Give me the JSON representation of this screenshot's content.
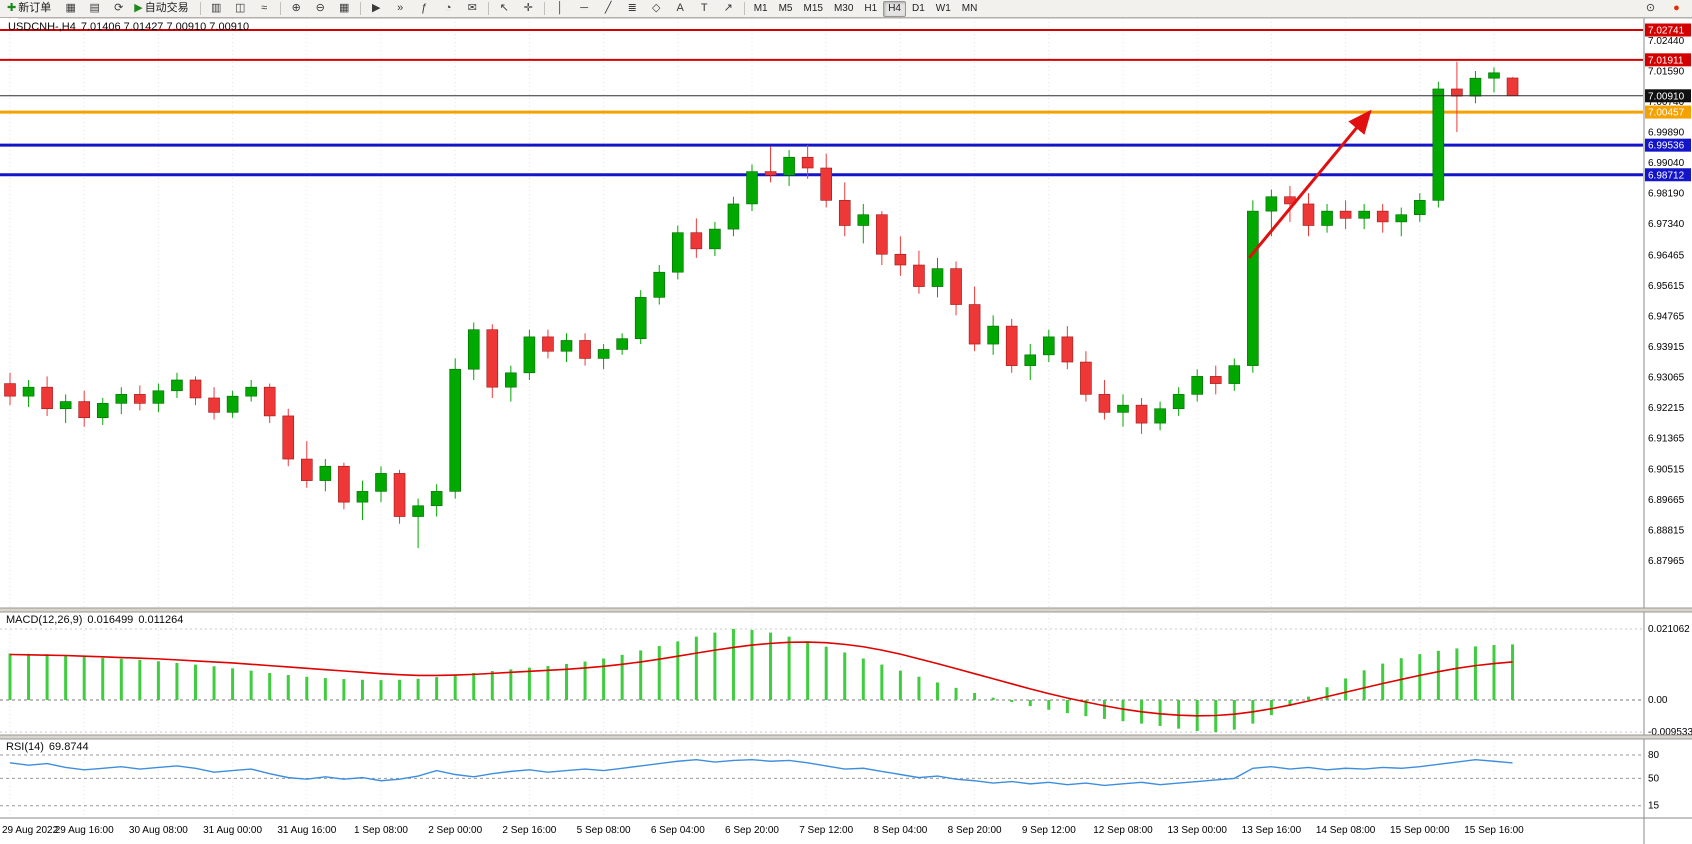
{
  "toolbar": {
    "new_order_label": "新订单",
    "autotrading_label": "自动交易",
    "left_items": [
      {
        "name": "new-order",
        "glyph": "✚",
        "glyph_color": "#1d8a1d",
        "label": "新订单"
      },
      {
        "name": "charts-window",
        "glyph": "▦"
      },
      {
        "name": "profiles",
        "glyph": "▤"
      },
      {
        "name": "refresh",
        "glyph": "⟳"
      },
      {
        "name": "autotrading",
        "glyph": "▶",
        "glyph_color": "#1d8a1d",
        "label": "自动交易"
      },
      {
        "sep": true
      },
      {
        "name": "bar-chart",
        "glyph": "▥"
      },
      {
        "name": "candlestick-chart",
        "glyph": "◫"
      },
      {
        "name": "line-chart",
        "glyph": "≈"
      },
      {
        "sep": true
      },
      {
        "name": "zoom-in",
        "glyph": "⊕"
      },
      {
        "name": "zoom-out",
        "glyph": "⊖"
      },
      {
        "name": "tile-windows",
        "glyph": "▦"
      },
      {
        "sep": true
      },
      {
        "name": "auto-scroll",
        "glyph": "▶"
      },
      {
        "name": "chart-shift",
        "glyph": "»"
      },
      {
        "name": "indicators",
        "glyph": "ƒ"
      },
      {
        "name": "periods",
        "glyph": "◔"
      },
      {
        "name": "alerts",
        "glyph": "✉"
      },
      {
        "sep": true
      },
      {
        "name": "cursor",
        "glyph": "↖"
      },
      {
        "name": "crosshair",
        "glyph": "✛"
      },
      {
        "sep": true
      },
      {
        "name": "vertical-line-tool",
        "glyph": "│"
      },
      {
        "name": "horizontal-line-tool",
        "glyph": "─"
      },
      {
        "name": "trendline-tool",
        "glyph": "╱"
      },
      {
        "name": "fibonacci-tool",
        "glyph": "≣"
      },
      {
        "name": "shapes-tool",
        "glyph": "◇"
      },
      {
        "name": "text-tool",
        "glyph": "A"
      },
      {
        "name": "label-tool",
        "glyph": "T"
      },
      {
        "name": "arrows-tool",
        "glyph": "↗"
      },
      {
        "sep": true
      }
    ],
    "timeframes": [
      "M1",
      "M5",
      "M15",
      "M30",
      "H1",
      "H4",
      "D1",
      "W1",
      "MN"
    ],
    "active_timeframe": "H4",
    "right_items": [
      {
        "name": "search",
        "glyph": "⊙",
        "glyph_color": "#3a3a3a"
      },
      {
        "name": "notification",
        "glyph": "●",
        "glyph_color": "#e03000"
      }
    ]
  },
  "colors": {
    "up": "#00A800",
    "up_edge": "#006b00",
    "down": "#EE3838",
    "down_edge": "#9e1515",
    "macd_hist": "#3FCC3F",
    "macd_signal": "#E00000",
    "rsi": "#3E8EDE",
    "grid": "#E4E4E4",
    "arrow": "#E01010",
    "axis_border": "#8A8A8A",
    "current_price_line": "#2F2F2F",
    "current_price_badge": "#111111"
  },
  "chart_data": {
    "type": "candlestick",
    "symbol": "USDCNH",
    "timeframe": "H4",
    "symbol_header": "USDCNH-,H4",
    "ohlc_text": "7.01406 7.01427 7.00910 7.00910",
    "ohlc": {
      "open": "7.01406",
      "high": "7.01427",
      "low": "7.00910",
      "close": "7.00910"
    },
    "current_price": 7.0091,
    "ylim": [
      6.87965,
      7.02741
    ],
    "price_axis_labels": [
      7.0244,
      7.0159,
      7.0074,
      6.9989,
      6.9904,
      6.9819,
      6.9734,
      6.96465,
      6.95615,
      6.94765,
      6.93915,
      6.93065,
      6.92215,
      6.91365,
      6.90515,
      6.89665,
      6.88815,
      6.87965
    ],
    "level_lines": [
      {
        "name": "resistance-line-1",
        "price": 7.02741,
        "color": "#D40000",
        "width": 2
      },
      {
        "name": "resistance-line-2",
        "price": 7.01911,
        "color": "#D40000",
        "width": 2
      },
      {
        "name": "pivot-line-orange",
        "price": 7.00457,
        "color": "#F5A100",
        "width": 3
      },
      {
        "name": "support-line-1",
        "price": 6.99536,
        "color": "#1414C8",
        "width": 3
      },
      {
        "name": "support-line-2",
        "price": 6.98712,
        "color": "#1414C8",
        "width": 3
      }
    ],
    "arrow_annotation": {
      "from_bar": 66.8,
      "from_price": 6.964,
      "to_bar": 73.3,
      "to_price": 7.0046
    },
    "time_labels": [
      "29 Aug 2022",
      "29 Aug 16:00",
      "30 Aug 08:00",
      "31 Aug 00:00",
      "31 Aug 16:00",
      "1 Sep 08:00",
      "2 Sep 00:00",
      "2 Sep 16:00",
      "5 Sep 08:00",
      "6 Sep 04:00",
      "6 Sep 20:00",
      "7 Sep 12:00",
      "8 Sep 04:00",
      "8 Sep 20:00",
      "9 Sep 12:00",
      "12 Sep 08:00",
      "13 Sep 00:00",
      "13 Sep 16:00",
      "14 Sep 08:00",
      "15 Sep 00:00",
      "15 Sep 16:00"
    ],
    "candles": [
      [
        6.929,
        6.932,
        6.923,
        6.9255
      ],
      [
        6.9255,
        6.93,
        6.9225,
        6.928
      ],
      [
        6.928,
        6.931,
        6.92,
        6.922
      ],
      [
        6.922,
        6.926,
        6.918,
        6.924
      ],
      [
        6.924,
        6.927,
        6.917,
        6.9195
      ],
      [
        6.9195,
        6.925,
        6.9175,
        6.9235
      ],
      [
        6.9235,
        6.928,
        6.9205,
        6.926
      ],
      [
        6.926,
        6.9285,
        6.9215,
        6.9235
      ],
      [
        6.9235,
        6.929,
        6.921,
        6.927
      ],
      [
        6.927,
        6.932,
        6.925,
        6.93
      ],
      [
        6.93,
        6.931,
        6.923,
        6.925
      ],
      [
        6.925,
        6.928,
        6.919,
        6.921
      ],
      [
        6.921,
        6.927,
        6.9195,
        6.9255
      ],
      [
        6.9255,
        6.93,
        6.924,
        6.928
      ],
      [
        6.928,
        6.929,
        6.918,
        6.92
      ],
      [
        6.92,
        6.922,
        6.906,
        6.908
      ],
      [
        6.908,
        6.913,
        6.9,
        6.902
      ],
      [
        6.902,
        6.908,
        6.899,
        6.906
      ],
      [
        6.906,
        6.907,
        6.894,
        6.896
      ],
      [
        6.896,
        6.902,
        6.891,
        6.899
      ],
      [
        6.899,
        6.906,
        6.896,
        6.904
      ],
      [
        6.904,
        6.905,
        6.89,
        6.892
      ],
      [
        6.892,
        6.897,
        6.8832,
        6.895
      ],
      [
        6.895,
        6.901,
        6.892,
        6.899
      ],
      [
        6.899,
        6.936,
        6.897,
        6.933
      ],
      [
        6.933,
        6.946,
        6.93,
        6.944
      ],
      [
        6.944,
        6.9455,
        6.925,
        6.928
      ],
      [
        6.928,
        6.934,
        6.924,
        6.932
      ],
      [
        6.932,
        6.944,
        6.93,
        6.942
      ],
      [
        6.942,
        6.944,
        6.936,
        6.938
      ],
      [
        6.938,
        6.943,
        6.935,
        6.941
      ],
      [
        6.941,
        6.943,
        6.934,
        6.936
      ],
      [
        6.936,
        6.94,
        6.933,
        6.9385
      ],
      [
        6.9385,
        6.943,
        6.937,
        6.9415
      ],
      [
        6.9415,
        6.955,
        6.94,
        6.953
      ],
      [
        6.953,
        6.962,
        6.951,
        6.96
      ],
      [
        6.96,
        6.973,
        6.958,
        6.971
      ],
      [
        6.971,
        6.975,
        6.964,
        6.9665
      ],
      [
        6.9665,
        6.974,
        6.9645,
        6.972
      ],
      [
        6.972,
        6.981,
        6.97,
        6.979
      ],
      [
        6.979,
        6.99,
        6.977,
        6.988
      ],
      [
        6.988,
        6.995,
        6.985,
        6.987
      ],
      [
        6.987,
        6.994,
        6.984,
        6.992
      ],
      [
        6.992,
        6.9954,
        6.986,
        6.989
      ],
      [
        6.989,
        6.993,
        6.978,
        6.98
      ],
      [
        6.98,
        6.985,
        6.97,
        6.973
      ],
      [
        6.973,
        6.979,
        6.968,
        6.976
      ],
      [
        6.976,
        6.977,
        6.962,
        6.965
      ],
      [
        6.965,
        6.97,
        6.959,
        6.962
      ],
      [
        6.962,
        6.966,
        6.954,
        6.956
      ],
      [
        6.956,
        6.964,
        6.953,
        6.961
      ],
      [
        6.961,
        6.963,
        6.948,
        6.951
      ],
      [
        6.951,
        6.956,
        6.938,
        6.94
      ],
      [
        6.94,
        6.948,
        6.937,
        6.945
      ],
      [
        6.945,
        6.947,
        6.932,
        6.934
      ],
      [
        6.934,
        6.94,
        6.93,
        6.937
      ],
      [
        6.937,
        6.944,
        6.935,
        6.942
      ],
      [
        6.942,
        6.945,
        6.933,
        6.935
      ],
      [
        6.935,
        6.938,
        6.924,
        6.926
      ],
      [
        6.926,
        6.93,
        6.919,
        6.921
      ],
      [
        6.921,
        6.926,
        6.917,
        6.923
      ],
      [
        6.923,
        6.925,
        6.915,
        6.918
      ],
      [
        6.918,
        6.924,
        6.916,
        6.922
      ],
      [
        6.922,
        6.928,
        6.92,
        6.926
      ],
      [
        6.926,
        6.933,
        6.924,
        6.931
      ],
      [
        6.931,
        6.934,
        6.926,
        6.929
      ],
      [
        6.929,
        6.936,
        6.927,
        6.934
      ],
      [
        6.934,
        6.98,
        6.932,
        6.977
      ],
      [
        6.977,
        6.983,
        6.97,
        6.981
      ],
      [
        6.981,
        6.984,
        6.974,
        6.979
      ],
      [
        6.979,
        6.982,
        6.97,
        6.973
      ],
      [
        6.973,
        6.979,
        6.971,
        6.977
      ],
      [
        6.977,
        6.98,
        6.972,
        6.975
      ],
      [
        6.975,
        6.979,
        6.972,
        6.977
      ],
      [
        6.977,
        6.979,
        6.971,
        6.974
      ],
      [
        6.974,
        6.978,
        6.97,
        6.976
      ],
      [
        6.976,
        6.982,
        6.974,
        6.98
      ],
      [
        6.98,
        7.013,
        6.978,
        7.011
      ],
      [
        7.011,
        7.0186,
        6.999,
        7.009
      ],
      [
        7.009,
        7.016,
        7.007,
        7.014
      ],
      [
        7.014,
        7.017,
        7.01,
        7.0155
      ],
      [
        7.01406,
        7.01427,
        7.0091,
        7.0091
      ]
    ],
    "macd": {
      "label": "MACD(12,26,9)",
      "value_macd": "0.016499",
      "value_signal": "0.011264",
      "axis": [
        {
          "label": "0.021062",
          "value": 0.021062
        },
        {
          "label": "0.00",
          "value": 0
        },
        {
          "label": "-0.009533",
          "value": -0.009533
        }
      ],
      "histogram": [
        0.0138,
        0.0137,
        0.0136,
        0.0133,
        0.0129,
        0.0125,
        0.0122,
        0.0119,
        0.0115,
        0.011,
        0.0105,
        0.01,
        0.0094,
        0.0087,
        0.008,
        0.0074,
        0.0069,
        0.0065,
        0.0062,
        0.006,
        0.0059,
        0.006,
        0.0063,
        0.0068,
        0.0074,
        0.008,
        0.0086,
        0.0091,
        0.0096,
        0.0101,
        0.0107,
        0.0114,
        0.0123,
        0.0134,
        0.0147,
        0.016,
        0.0174,
        0.0188,
        0.02,
        0.0211,
        0.0208,
        0.02,
        0.0188,
        0.0174,
        0.0158,
        0.0141,
        0.0123,
        0.0105,
        0.0087,
        0.0069,
        0.0052,
        0.0036,
        0.0021,
        0.0007,
        -0.0006,
        -0.0018,
        -0.0029,
        -0.0039,
        -0.0048,
        -0.0056,
        -0.0063,
        -0.007,
        -0.0077,
        -0.0085,
        -0.0092,
        -0.0095,
        -0.0088,
        -0.007,
        -0.0045,
        -0.0018,
        0.001,
        0.0038,
        0.0064,
        0.0088,
        0.0108,
        0.0124,
        0.0136,
        0.0146,
        0.0153,
        0.0159,
        0.0163,
        0.0165
      ],
      "signal": [
        0.0135,
        0.0134,
        0.0133,
        0.0132,
        0.013,
        0.0128,
        0.0126,
        0.0124,
        0.0122,
        0.0119,
        0.0116,
        0.0113,
        0.011,
        0.0106,
        0.0102,
        0.0098,
        0.0094,
        0.009,
        0.0086,
        0.0082,
        0.0078,
        0.0075,
        0.0073,
        0.0073,
        0.0074,
        0.0076,
        0.0079,
        0.0082,
        0.0085,
        0.0088,
        0.0091,
        0.0095,
        0.01,
        0.0106,
        0.0113,
        0.0121,
        0.013,
        0.0139,
        0.0148,
        0.0156,
        0.0163,
        0.0168,
        0.0171,
        0.0172,
        0.017,
        0.0165,
        0.0158,
        0.0148,
        0.0136,
        0.0122,
        0.0108,
        0.0093,
        0.0078,
        0.0063,
        0.0048,
        0.0033,
        0.0019,
        0.0006,
        -0.0006,
        -0.0017,
        -0.0027,
        -0.0035,
        -0.0041,
        -0.0045,
        -0.0047,
        -0.0046,
        -0.0042,
        -0.0035,
        -0.0026,
        -0.0015,
        -0.0003,
        0.001,
        0.0023,
        0.0036,
        0.0049,
        0.0061,
        0.0073,
        0.0084,
        0.0094,
        0.0102,
        0.0108,
        0.0113
      ]
    },
    "rsi": {
      "label": "RSI(14)",
      "value": "69.8744",
      "levels": [
        {
          "label": "80",
          "value": 80
        },
        {
          "label": "50",
          "value": 50
        },
        {
          "label": "15",
          "value": 15
        }
      ],
      "values": [
        70,
        67,
        69,
        64,
        61,
        63,
        65,
        62,
        64,
        66,
        63,
        58,
        60,
        62,
        56,
        51,
        49,
        52,
        49,
        51,
        47,
        49,
        53,
        60,
        55,
        52,
        56,
        59,
        61,
        58,
        60,
        62,
        60,
        63,
        66,
        69,
        72,
        74,
        71,
        73,
        74,
        72,
        73,
        70,
        66,
        62,
        63,
        59,
        55,
        51,
        53,
        49,
        47,
        44,
        46,
        43,
        45,
        42,
        44,
        41,
        43,
        45,
        42,
        44,
        46,
        48,
        50,
        63,
        65,
        62,
        64,
        61,
        63,
        62,
        64,
        63,
        65,
        68,
        71,
        74,
        72,
        69.87
      ]
    }
  }
}
